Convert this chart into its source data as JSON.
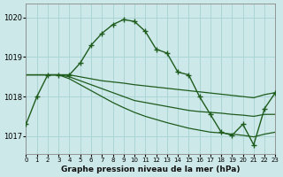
{
  "title": "Graphe pression niveau de la mer (hPa)",
  "bg_color": "#cde8e8",
  "grid_color": "#aad4d4",
  "line_color": "#1e5c1e",
  "ylim": [
    1016.55,
    1020.35
  ],
  "xlim": [
    0,
    23
  ],
  "yticks": [
    1017,
    1018,
    1019,
    1020
  ],
  "xtick_labels": [
    "0",
    "1",
    "2",
    "3",
    "4",
    "5",
    "6",
    "7",
    "8",
    "9",
    "10",
    "11",
    "12",
    "13",
    "14",
    "15",
    "16",
    "17",
    "18",
    "19",
    "20",
    "21",
    "22",
    "23"
  ],
  "series_main_y": [
    1017.3,
    1018.0,
    1018.55,
    1018.55,
    1018.55,
    1018.85,
    1019.3,
    1019.6,
    1019.82,
    1019.95,
    1019.9,
    1019.65,
    1019.2,
    1019.1,
    1018.62,
    1018.55,
    1018.0,
    1017.55,
    1017.1,
    1017.02,
    1017.3,
    1016.78,
    1017.7,
    1018.1
  ],
  "line2_y": [
    1018.55,
    1018.55,
    1018.55,
    1018.55,
    1018.55,
    1018.5,
    1018.45,
    1018.4,
    1018.37,
    1018.34,
    1018.3,
    1018.27,
    1018.24,
    1018.21,
    1018.18,
    1018.15,
    1018.12,
    1018.09,
    1018.06,
    1018.03,
    1018.0,
    1017.97,
    1018.05,
    1018.1
  ],
  "line3_y": [
    1018.55,
    1018.55,
    1018.55,
    1018.55,
    1018.5,
    1018.4,
    1018.3,
    1018.2,
    1018.1,
    1018.0,
    1017.9,
    1017.85,
    1017.8,
    1017.75,
    1017.7,
    1017.65,
    1017.62,
    1017.6,
    1017.58,
    1017.55,
    1017.53,
    1017.5,
    1017.55,
    1017.55
  ],
  "line4_y": [
    1018.55,
    1018.55,
    1018.55,
    1018.55,
    1018.45,
    1018.3,
    1018.15,
    1018.0,
    1017.85,
    1017.72,
    1017.6,
    1017.5,
    1017.42,
    1017.34,
    1017.27,
    1017.2,
    1017.15,
    1017.1,
    1017.08,
    1017.05,
    1017.02,
    1016.98,
    1017.05,
    1017.1
  ]
}
